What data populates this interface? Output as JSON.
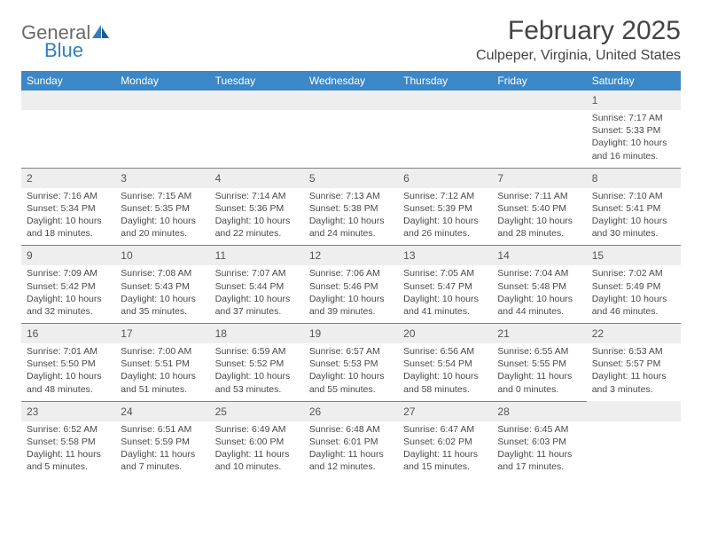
{
  "logo": {
    "general": "General",
    "blue": "Blue"
  },
  "title": "February 2025",
  "location": "Culpeper, Virginia, United States",
  "colors": {
    "header_bg": "#3b87c8",
    "header_text": "#ffffff",
    "daynum_bg": "#eeeeee",
    "border": "#808080",
    "body_text": "#494949",
    "title_text": "#444444",
    "logo_gray": "#6a6a6a",
    "logo_blue": "#2f7fbf"
  },
  "weekdays": [
    "Sunday",
    "Monday",
    "Tuesday",
    "Wednesday",
    "Thursday",
    "Friday",
    "Saturday"
  ],
  "weeks": [
    [
      {
        "n": "",
        "sr": "",
        "ss": "",
        "dl": ""
      },
      {
        "n": "",
        "sr": "",
        "ss": "",
        "dl": ""
      },
      {
        "n": "",
        "sr": "",
        "ss": "",
        "dl": ""
      },
      {
        "n": "",
        "sr": "",
        "ss": "",
        "dl": ""
      },
      {
        "n": "",
        "sr": "",
        "ss": "",
        "dl": ""
      },
      {
        "n": "",
        "sr": "",
        "ss": "",
        "dl": ""
      },
      {
        "n": "1",
        "sr": "Sunrise: 7:17 AM",
        "ss": "Sunset: 5:33 PM",
        "dl": "Daylight: 10 hours and 16 minutes."
      }
    ],
    [
      {
        "n": "2",
        "sr": "Sunrise: 7:16 AM",
        "ss": "Sunset: 5:34 PM",
        "dl": "Daylight: 10 hours and 18 minutes."
      },
      {
        "n": "3",
        "sr": "Sunrise: 7:15 AM",
        "ss": "Sunset: 5:35 PM",
        "dl": "Daylight: 10 hours and 20 minutes."
      },
      {
        "n": "4",
        "sr": "Sunrise: 7:14 AM",
        "ss": "Sunset: 5:36 PM",
        "dl": "Daylight: 10 hours and 22 minutes."
      },
      {
        "n": "5",
        "sr": "Sunrise: 7:13 AM",
        "ss": "Sunset: 5:38 PM",
        "dl": "Daylight: 10 hours and 24 minutes."
      },
      {
        "n": "6",
        "sr": "Sunrise: 7:12 AM",
        "ss": "Sunset: 5:39 PM",
        "dl": "Daylight: 10 hours and 26 minutes."
      },
      {
        "n": "7",
        "sr": "Sunrise: 7:11 AM",
        "ss": "Sunset: 5:40 PM",
        "dl": "Daylight: 10 hours and 28 minutes."
      },
      {
        "n": "8",
        "sr": "Sunrise: 7:10 AM",
        "ss": "Sunset: 5:41 PM",
        "dl": "Daylight: 10 hours and 30 minutes."
      }
    ],
    [
      {
        "n": "9",
        "sr": "Sunrise: 7:09 AM",
        "ss": "Sunset: 5:42 PM",
        "dl": "Daylight: 10 hours and 32 minutes."
      },
      {
        "n": "10",
        "sr": "Sunrise: 7:08 AM",
        "ss": "Sunset: 5:43 PM",
        "dl": "Daylight: 10 hours and 35 minutes."
      },
      {
        "n": "11",
        "sr": "Sunrise: 7:07 AM",
        "ss": "Sunset: 5:44 PM",
        "dl": "Daylight: 10 hours and 37 minutes."
      },
      {
        "n": "12",
        "sr": "Sunrise: 7:06 AM",
        "ss": "Sunset: 5:46 PM",
        "dl": "Daylight: 10 hours and 39 minutes."
      },
      {
        "n": "13",
        "sr": "Sunrise: 7:05 AM",
        "ss": "Sunset: 5:47 PM",
        "dl": "Daylight: 10 hours and 41 minutes."
      },
      {
        "n": "14",
        "sr": "Sunrise: 7:04 AM",
        "ss": "Sunset: 5:48 PM",
        "dl": "Daylight: 10 hours and 44 minutes."
      },
      {
        "n": "15",
        "sr": "Sunrise: 7:02 AM",
        "ss": "Sunset: 5:49 PM",
        "dl": "Daylight: 10 hours and 46 minutes."
      }
    ],
    [
      {
        "n": "16",
        "sr": "Sunrise: 7:01 AM",
        "ss": "Sunset: 5:50 PM",
        "dl": "Daylight: 10 hours and 48 minutes."
      },
      {
        "n": "17",
        "sr": "Sunrise: 7:00 AM",
        "ss": "Sunset: 5:51 PM",
        "dl": "Daylight: 10 hours and 51 minutes."
      },
      {
        "n": "18",
        "sr": "Sunrise: 6:59 AM",
        "ss": "Sunset: 5:52 PM",
        "dl": "Daylight: 10 hours and 53 minutes."
      },
      {
        "n": "19",
        "sr": "Sunrise: 6:57 AM",
        "ss": "Sunset: 5:53 PM",
        "dl": "Daylight: 10 hours and 55 minutes."
      },
      {
        "n": "20",
        "sr": "Sunrise: 6:56 AM",
        "ss": "Sunset: 5:54 PM",
        "dl": "Daylight: 10 hours and 58 minutes."
      },
      {
        "n": "21",
        "sr": "Sunrise: 6:55 AM",
        "ss": "Sunset: 5:55 PM",
        "dl": "Daylight: 11 hours and 0 minutes."
      },
      {
        "n": "22",
        "sr": "Sunrise: 6:53 AM",
        "ss": "Sunset: 5:57 PM",
        "dl": "Daylight: 11 hours and 3 minutes."
      }
    ],
    [
      {
        "n": "23",
        "sr": "Sunrise: 6:52 AM",
        "ss": "Sunset: 5:58 PM",
        "dl": "Daylight: 11 hours and 5 minutes."
      },
      {
        "n": "24",
        "sr": "Sunrise: 6:51 AM",
        "ss": "Sunset: 5:59 PM",
        "dl": "Daylight: 11 hours and 7 minutes."
      },
      {
        "n": "25",
        "sr": "Sunrise: 6:49 AM",
        "ss": "Sunset: 6:00 PM",
        "dl": "Daylight: 11 hours and 10 minutes."
      },
      {
        "n": "26",
        "sr": "Sunrise: 6:48 AM",
        "ss": "Sunset: 6:01 PM",
        "dl": "Daylight: 11 hours and 12 minutes."
      },
      {
        "n": "27",
        "sr": "Sunrise: 6:47 AM",
        "ss": "Sunset: 6:02 PM",
        "dl": "Daylight: 11 hours and 15 minutes."
      },
      {
        "n": "28",
        "sr": "Sunrise: 6:45 AM",
        "ss": "Sunset: 6:03 PM",
        "dl": "Daylight: 11 hours and 17 minutes."
      },
      {
        "n": "",
        "sr": "",
        "ss": "",
        "dl": ""
      }
    ]
  ]
}
